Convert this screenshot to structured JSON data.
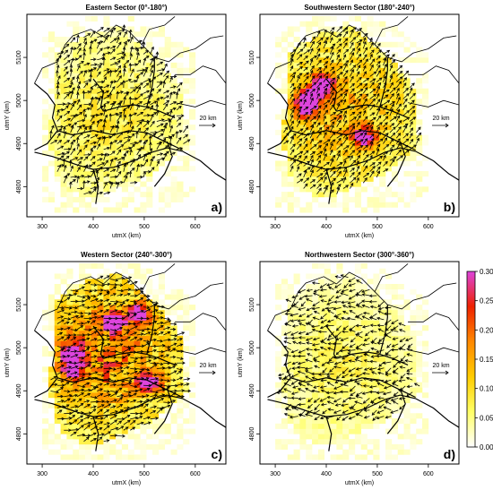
{
  "panels": [
    {
      "title": "Eastern Sector (0°-180°)",
      "letter": "a)",
      "intensity": 0.15,
      "hot": []
    },
    {
      "title": "Southwestern Sector (180°-240°)",
      "letter": "b)",
      "intensity": 0.55,
      "hot": [
        [
          370,
          5010
        ],
        [
          360,
          4985
        ],
        [
          395,
          5040
        ],
        [
          475,
          4915
        ]
      ]
    },
    {
      "title": "Western Sector (240°-300°)",
      "letter": "c)",
      "intensity": 0.85,
      "hot": [
        [
          360,
          4990
        ],
        [
          360,
          4950
        ],
        [
          440,
          5060
        ],
        [
          490,
          5080
        ],
        [
          510,
          4920
        ]
      ]
    },
    {
      "title": "Northwestern Sector (300°-360°)",
      "letter": "d)",
      "intensity": 0.05,
      "hot": []
    }
  ],
  "axes": {
    "xlabel": "utmX (km)",
    "ylabel": "utmY (km)",
    "xticks": [
      300,
      400,
      500,
      600
    ],
    "yticks": [
      4800,
      4900,
      5000,
      5100
    ],
    "xlim": [
      270,
      660
    ],
    "ylim": [
      4730,
      5200
    ]
  },
  "scale_label": "20 km",
  "colorbar": {
    "ticks": [
      "0.30",
      "0.25",
      "0.20",
      "0.15",
      "0.10",
      "0.05",
      "0.00"
    ],
    "range": [
      0,
      0.3
    ],
    "colors": [
      "#ffffff",
      "#ffff66",
      "#ffcc00",
      "#ff8800",
      "#ee2200",
      "#dd44dd"
    ]
  }
}
